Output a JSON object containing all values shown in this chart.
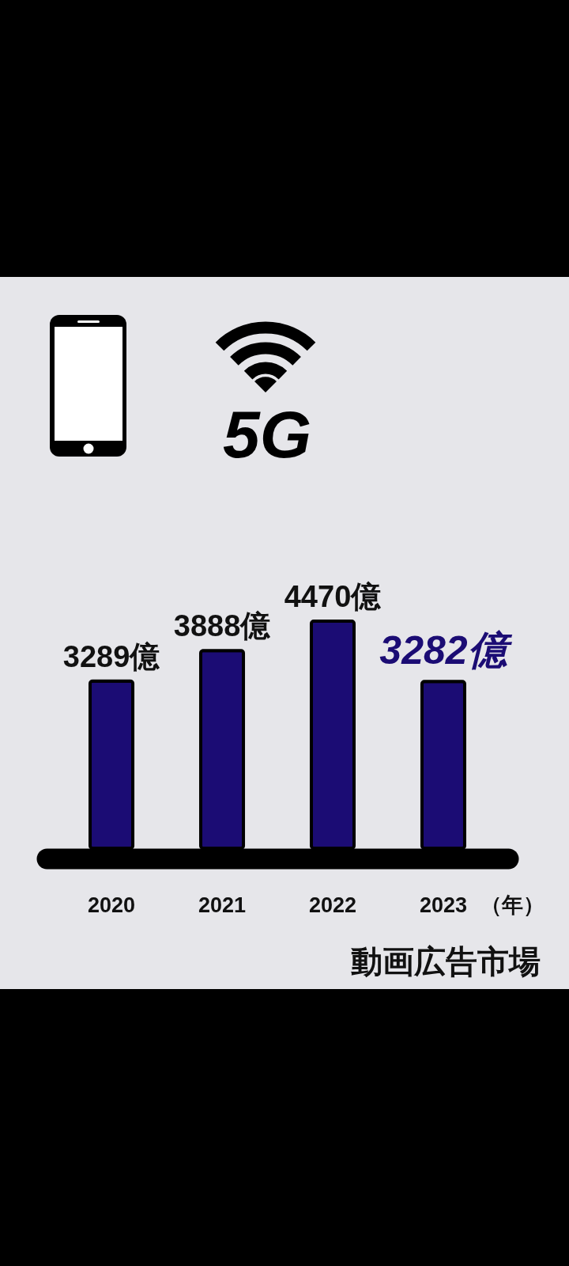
{
  "chart_data": {
    "type": "bar",
    "title": "動画広告市場",
    "xlabel": "（年）",
    "categories": [
      "2020",
      "2021",
      "2022",
      "2023"
    ],
    "values": [
      3289,
      3888,
      4470,
      3282
    ],
    "value_labels": [
      "3289億",
      "3888億",
      "4470億",
      "3282億"
    ],
    "color": "#1b0c74",
    "annotations": [
      "5G"
    ]
  }
}
